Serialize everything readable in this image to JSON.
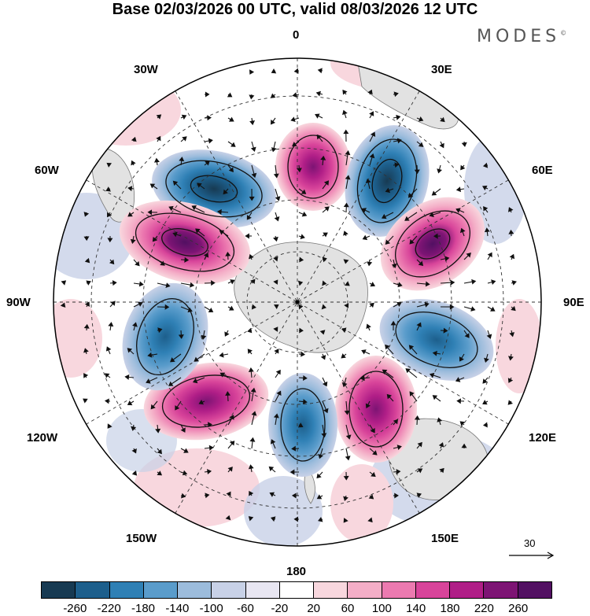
{
  "title": "Base 02/03/2026 00 UTC, valid 08/03/2026 12 UTC",
  "brand": "MODES",
  "brand_mark": "©",
  "longitude_labels": {
    "top": "0",
    "lon_30w": "30W",
    "lon_30e": "30E",
    "lon_60w": "60W",
    "lon_60e": "60E",
    "lon_90w": "90W",
    "lon_90e": "90E",
    "lon_120w": "120W",
    "lon_120e": "120E",
    "lon_150w": "150W",
    "lon_150e": "150E",
    "bottom": "180"
  },
  "reference_vector_label": "30",
  "colorbar": {
    "colors": [
      "#173a52",
      "#1d5f8c",
      "#2f80b5",
      "#5a9ccb",
      "#9cbcdc",
      "#c8d1e7",
      "#e8e6f2",
      "#ffffff",
      "#f8d7de",
      "#f4aec7",
      "#ec7ab0",
      "#d8449a",
      "#b01e87",
      "#7d1474",
      "#521062"
    ],
    "ticks": [
      "-260",
      "-220",
      "-180",
      "-140",
      "-100",
      "-60",
      "-20",
      "20",
      "60",
      "100",
      "140",
      "180",
      "220",
      "260"
    ]
  },
  "anomaly_centers": [
    {
      "name": "blue-anomaly-30w",
      "value": -180
    },
    {
      "name": "pink-anomaly-0",
      "value": 220
    },
    {
      "name": "blue-anomaly-30e",
      "value": -260
    },
    {
      "name": "pink-anomaly-60e",
      "value": 220
    },
    {
      "name": "blue-anomaly-90e",
      "value": -180
    },
    {
      "name": "pink-anomaly-150e",
      "value": 180
    },
    {
      "name": "blue-anomaly-180",
      "value": -180
    },
    {
      "name": "pink-anomaly-120w",
      "value": 180
    },
    {
      "name": "blue-anomaly-90w",
      "value": -180
    },
    {
      "name": "pink-anomaly-60w",
      "value": 260
    }
  ]
}
